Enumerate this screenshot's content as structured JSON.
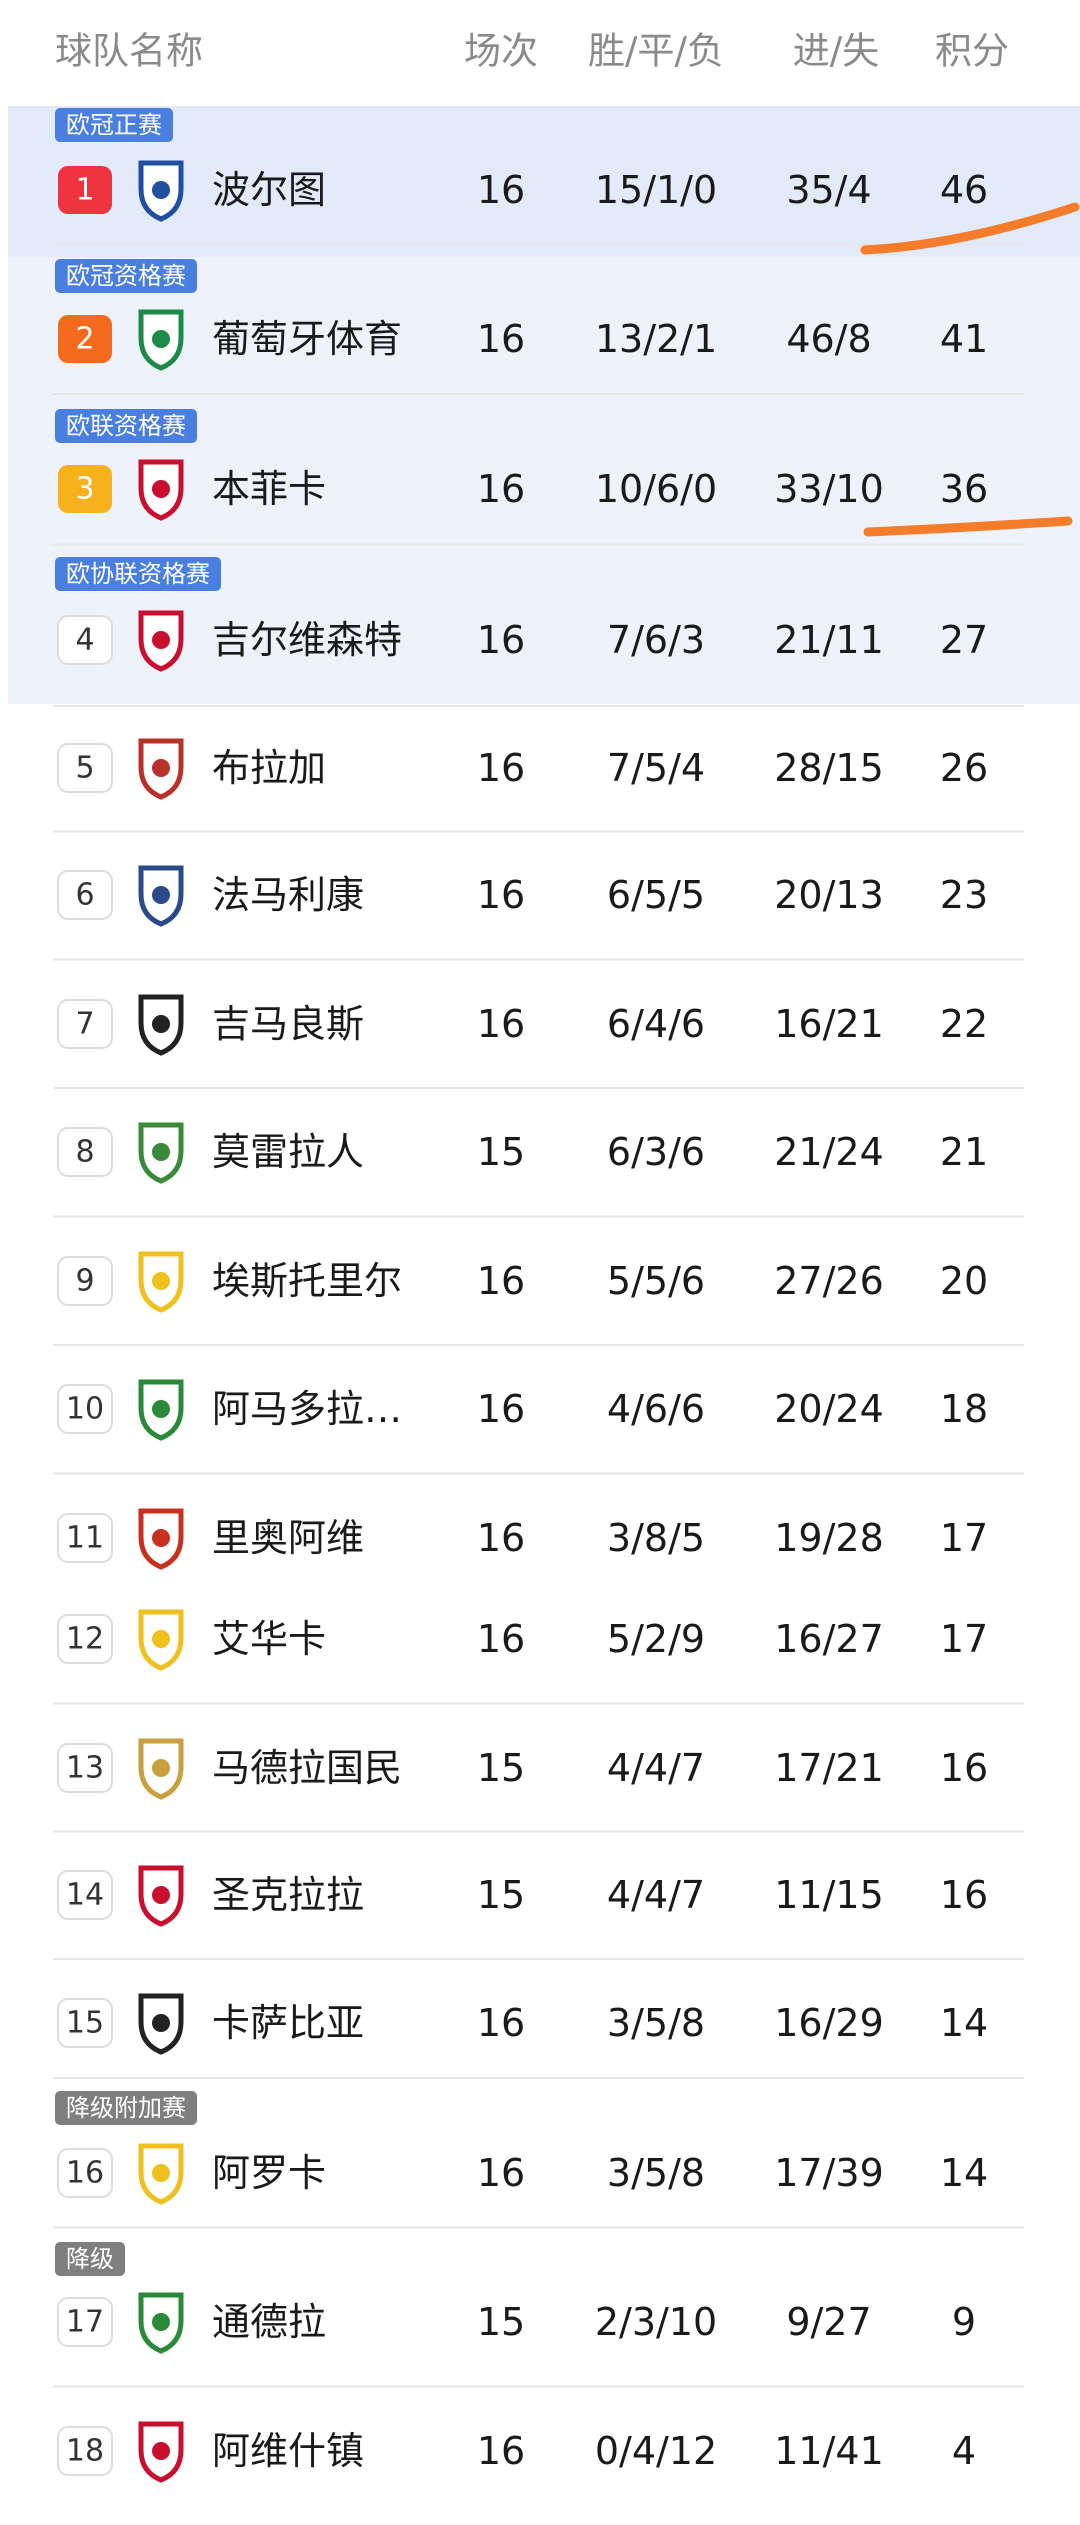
{
  "header": {
    "team": "球队名称",
    "played": "场次",
    "wdl": "胜/平/负",
    "goals": "进/失",
    "points": "积分"
  },
  "rows": [
    {
      "rank": 1,
      "team": "波尔图",
      "played": 16,
      "wdl": "15/1/0",
      "goals": "35/4",
      "points": 46,
      "zone": "欧冠正赛"
    },
    {
      "rank": 2,
      "team": "葡萄牙体育",
      "played": 16,
      "wdl": "13/2/1",
      "goals": "46/8",
      "points": 41,
      "zone": "欧冠资格赛"
    },
    {
      "rank": 3,
      "team": "本菲卡",
      "played": 16,
      "wdl": "10/6/0",
      "goals": "33/10",
      "points": 36,
      "zone": "欧联资格赛"
    },
    {
      "rank": 4,
      "team": "吉尔维森特",
      "played": 16,
      "wdl": "7/6/3",
      "goals": "21/11",
      "points": 27,
      "zone": "欧协联资格赛"
    },
    {
      "rank": 5,
      "team": "布拉加",
      "played": 16,
      "wdl": "7/5/4",
      "goals": "28/15",
      "points": 26
    },
    {
      "rank": 6,
      "team": "法马利康",
      "played": 16,
      "wdl": "6/5/5",
      "goals": "20/13",
      "points": 23
    },
    {
      "rank": 7,
      "team": "吉马良斯",
      "played": 16,
      "wdl": "6/4/6",
      "goals": "16/21",
      "points": 22
    },
    {
      "rank": 8,
      "team": "莫雷拉人",
      "played": 15,
      "wdl": "6/3/6",
      "goals": "21/24",
      "points": 21
    },
    {
      "rank": 9,
      "team": "埃斯托里尔",
      "played": 16,
      "wdl": "5/5/6",
      "goals": "27/26",
      "points": 20
    },
    {
      "rank": 10,
      "team": "阿马多拉…",
      "played": 16,
      "wdl": "4/6/6",
      "goals": "20/24",
      "points": 18
    },
    {
      "rank": 11,
      "team": "里奥阿维",
      "played": 16,
      "wdl": "3/8/5",
      "goals": "19/28",
      "points": 17
    },
    {
      "rank": 12,
      "team": "艾华卡",
      "played": 16,
      "wdl": "5/2/9",
      "goals": "16/27",
      "points": 17
    },
    {
      "rank": 13,
      "team": "马德拉国民",
      "played": 15,
      "wdl": "4/4/7",
      "goals": "17/21",
      "points": 16
    },
    {
      "rank": 14,
      "team": "圣克拉拉",
      "played": 15,
      "wdl": "4/4/7",
      "goals": "11/15",
      "points": 16
    },
    {
      "rank": 15,
      "team": "卡萨比亚",
      "played": 16,
      "wdl": "3/5/8",
      "goals": "16/29",
      "points": 14
    },
    {
      "rank": 16,
      "team": "阿罗卡",
      "played": 16,
      "wdl": "3/5/8",
      "goals": "17/39",
      "points": 14,
      "zone": "降级附加赛"
    },
    {
      "rank": 17,
      "team": "通德拉",
      "played": 15,
      "wdl": "2/3/10",
      "goals": "9/27",
      "points": 9,
      "zone": "降级"
    },
    {
      "rank": 18,
      "team": "阿维什镇",
      "played": 16,
      "wdl": "0/4/12",
      "goals": "11/41",
      "points": 4
    }
  ]
}
